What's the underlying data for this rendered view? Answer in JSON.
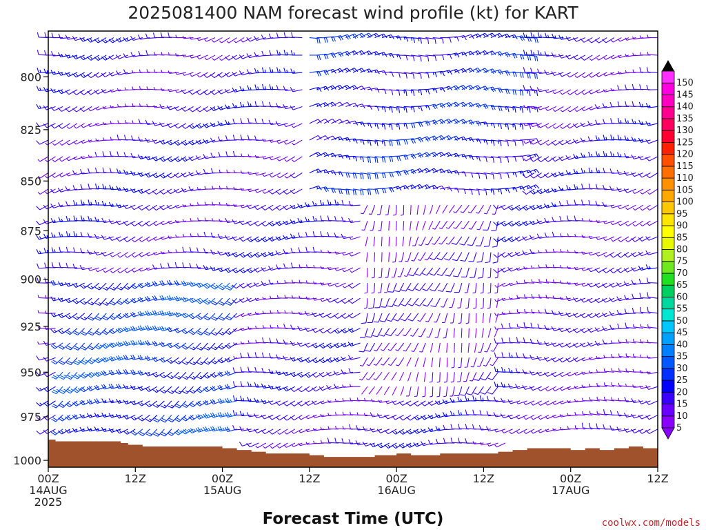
{
  "title": "2025081400 NAM forecast wind profile (kt) for KART",
  "credit": "coolwx.com/models",
  "chart_data": {
    "type": "wind-barb time-height profile",
    "title": "2025081400 NAM forecast wind profile (kt) for KART",
    "xlabel": "Forecast Time (UTC)",
    "ylabel": "",
    "units": "kt",
    "x_ticks": [
      {
        "hour": 0,
        "line1": "00Z",
        "line2": "14AUG",
        "line3": "2025"
      },
      {
        "hour": 12,
        "line1": "12Z",
        "line2": "",
        "line3": ""
      },
      {
        "hour": 24,
        "line1": "00Z",
        "line2": "15AUG",
        "line3": ""
      },
      {
        "hour": 36,
        "line1": "12Z",
        "line2": "",
        "line3": ""
      },
      {
        "hour": 48,
        "line1": "00Z",
        "line2": "16AUG",
        "line3": ""
      },
      {
        "hour": 60,
        "line1": "12Z",
        "line2": "",
        "line3": ""
      },
      {
        "hour": 72,
        "line1": "00Z",
        "line2": "17AUG",
        "line3": ""
      },
      {
        "hour": 84,
        "line1": "12Z",
        "line2": "",
        "line3": ""
      }
    ],
    "xlim_hours": [
      0,
      84
    ],
    "y_ticks_hpa": [
      "800",
      "825",
      "850",
      "875",
      "900",
      "925",
      "950",
      "975",
      "1000"
    ],
    "ylim_hpa": [
      779,
      1004
    ],
    "time_step_hours": 1,
    "level_step_hpa": 8,
    "colorbar": {
      "labels": [
        "5",
        "10",
        "15",
        "20",
        "25",
        "30",
        "35",
        "40",
        "45",
        "50",
        "55",
        "60",
        "65",
        "70",
        "75",
        "80",
        "85",
        "90",
        "95",
        "100",
        "105",
        "110",
        "115",
        "120",
        "125",
        "130",
        "135",
        "140",
        "145",
        "150"
      ],
      "colors": [
        "#8a00ff",
        "#6a00ff",
        "#3a00ff",
        "#0000ff",
        "#0030ff",
        "#0058ff",
        "#0080ff",
        "#00a0ff",
        "#00c8ff",
        "#00e6d2",
        "#00d8a0",
        "#00d060",
        "#20e020",
        "#70e820",
        "#b0f020",
        "#e8f800",
        "#ffff00",
        "#ffe600",
        "#ffc800",
        "#ffa800",
        "#ff9000",
        "#ff7000",
        "#ff5000",
        "#ff2000",
        "#ff0030",
        "#ff0060",
        "#ff0090",
        "#ff00c0",
        "#ff00e0",
        "#ff30ff"
      ]
    },
    "terrain": {
      "color": "#a0522d",
      "pressure_hpa_by_hour": [
        [
          0,
          988
        ],
        [
          1,
          989
        ],
        [
          9,
          989
        ],
        [
          10,
          990
        ],
        [
          11,
          991
        ],
        [
          13,
          992
        ],
        [
          24,
          993
        ],
        [
          26,
          994
        ],
        [
          28,
          995
        ],
        [
          30,
          996
        ],
        [
          36,
          997
        ],
        [
          38,
          998
        ],
        [
          45,
          997
        ],
        [
          48,
          996
        ],
        [
          50,
          997
        ],
        [
          54,
          996
        ],
        [
          58,
          996
        ],
        [
          62,
          995
        ],
        [
          64,
          994
        ],
        [
          66,
          993
        ],
        [
          70,
          993
        ],
        [
          72,
          994
        ],
        [
          74,
          993
        ],
        [
          76,
          994
        ],
        [
          78,
          993
        ],
        [
          80,
          992
        ],
        [
          82,
          993
        ],
        [
          84,
          992
        ]
      ]
    },
    "wind_regions": [
      {
        "name": "upper-westerly",
        "hour_range": [
          0,
          36
        ],
        "p_range": [
          779,
          900
        ],
        "dir_deg": 255,
        "speed_kt": 12
      },
      {
        "name": "low-westerly-jet",
        "hour_range": [
          2,
          26
        ],
        "p_range": [
          900,
          985
        ],
        "dir_deg": 240,
        "speed_kt": 22
      },
      {
        "name": "upper-easterly",
        "hour_range": [
          36,
          66
        ],
        "p_range": [
          779,
          860
        ],
        "dir_deg": 80,
        "speed_kt": 18
      },
      {
        "name": "mid-southerly",
        "hour_range": [
          44,
          62
        ],
        "p_range": [
          860,
          960
        ],
        "dir_deg": 200,
        "speed_kt": 8
      },
      {
        "name": "late-westerly",
        "hour_range": [
          66,
          84
        ],
        "p_range": [
          900,
          990
        ],
        "dir_deg": 260,
        "speed_kt": 10
      }
    ]
  }
}
